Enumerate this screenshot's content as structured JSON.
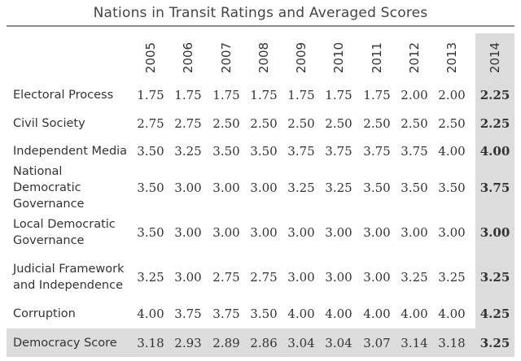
{
  "title": "Nations in Transit Ratings and Averaged Scores",
  "colors": {
    "highlight": "#dcdcdc",
    "rule": "#8a8a8a"
  },
  "years": [
    "2005",
    "2006",
    "2007",
    "2008",
    "2009",
    "2010",
    "2011",
    "2012",
    "2013",
    "2014"
  ],
  "rows": [
    {
      "label": "Electoral Process",
      "values": [
        "1.75",
        "1.75",
        "1.75",
        "1.75",
        "1.75",
        "1.75",
        "1.75",
        "2.00",
        "2.00",
        "2.25"
      ]
    },
    {
      "label": "Civil Society",
      "values": [
        "2.75",
        "2.75",
        "2.50",
        "2.50",
        "2.50",
        "2.50",
        "2.50",
        "2.50",
        "2.50",
        "2.25"
      ]
    },
    {
      "label": "Independent Media",
      "values": [
        "3.50",
        "3.25",
        "3.50",
        "3.50",
        "3.75",
        "3.75",
        "3.75",
        "3.75",
        "4.00",
        "4.00"
      ]
    },
    {
      "label": "National Democratic Governance",
      "values": [
        "3.50",
        "3.00",
        "3.00",
        "3.00",
        "3.25",
        "3.25",
        "3.50",
        "3.50",
        "3.50",
        "3.75"
      ]
    },
    {
      "label": "Local Democratic Governance",
      "values": [
        "3.50",
        "3.00",
        "3.00",
        "3.00",
        "3.00",
        "3.00",
        "3.00",
        "3.00",
        "3.00",
        "3.00"
      ]
    },
    {
      "label": "Judicial Framework and Independence",
      "values": [
        "3.25",
        "3.00",
        "2.75",
        "2.75",
        "3.00",
        "3.00",
        "3.00",
        "3.25",
        "3.25",
        "3.25"
      ]
    },
    {
      "label": "Corruption",
      "values": [
        "4.00",
        "3.75",
        "3.75",
        "3.50",
        "4.00",
        "4.00",
        "4.00",
        "4.00",
        "4.00",
        "4.25"
      ]
    },
    {
      "label": "Democracy Score",
      "values": [
        "3.18",
        "2.93",
        "2.89",
        "2.86",
        "3.04",
        "3.04",
        "3.07",
        "3.14",
        "3.18",
        "3.25"
      ]
    }
  ]
}
